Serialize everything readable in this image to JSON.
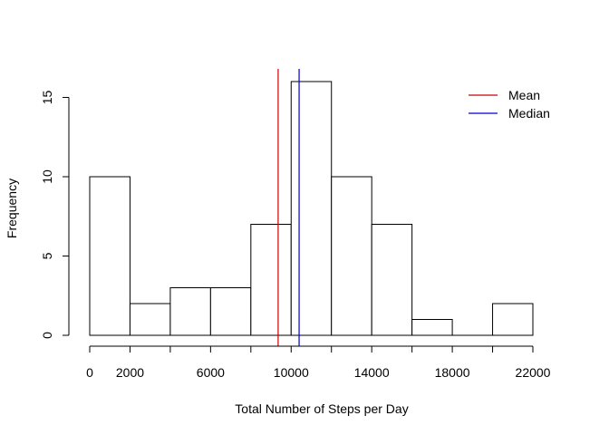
{
  "chart_data": {
    "type": "bar",
    "title": "",
    "xlabel": "Total Number of Steps per Day",
    "ylabel": "Frequency",
    "bins": [
      {
        "start": 0,
        "end": 2000,
        "count": 10
      },
      {
        "start": 2000,
        "end": 4000,
        "count": 2
      },
      {
        "start": 4000,
        "end": 6000,
        "count": 3
      },
      {
        "start": 6000,
        "end": 8000,
        "count": 3
      },
      {
        "start": 8000,
        "end": 10000,
        "count": 7
      },
      {
        "start": 10000,
        "end": 12000,
        "count": 16
      },
      {
        "start": 12000,
        "end": 14000,
        "count": 10
      },
      {
        "start": 14000,
        "end": 16000,
        "count": 7
      },
      {
        "start": 16000,
        "end": 18000,
        "count": 1
      },
      {
        "start": 18000,
        "end": 20000,
        "count": 0
      },
      {
        "start": 20000,
        "end": 22000,
        "count": 2
      }
    ],
    "xlim": [
      0,
      22000
    ],
    "ylim": [
      0,
      16
    ],
    "x_ticks": [
      0,
      2000,
      4000,
      6000,
      8000,
      10000,
      12000,
      14000,
      16000,
      18000,
      20000,
      22000
    ],
    "x_tick_labels": [
      "0",
      "2000",
      "",
      "6000",
      "",
      "10000",
      "",
      "14000",
      "",
      "18000",
      "",
      "22000"
    ],
    "y_ticks": [
      0,
      5,
      10,
      15
    ],
    "y_tick_labels": [
      "0",
      "5",
      "10",
      "15"
    ],
    "reference_lines": [
      {
        "name": "Mean",
        "value": 9354,
        "color": "#cc0000"
      },
      {
        "name": "Median",
        "value": 10395,
        "color": "#0000cc"
      }
    ],
    "legend": {
      "position": "top-right",
      "entries": [
        {
          "label": "Mean",
          "color": "#cc0000"
        },
        {
          "label": "Median",
          "color": "#0000cc"
        }
      ]
    },
    "grid": false
  }
}
